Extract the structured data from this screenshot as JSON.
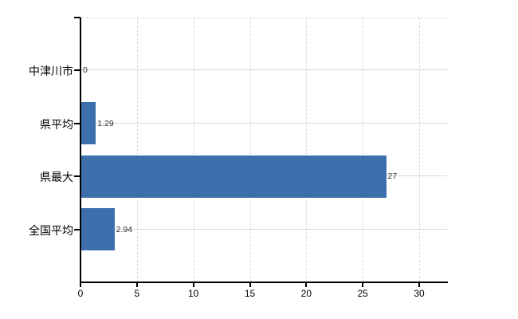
{
  "chart_data": {
    "type": "bar",
    "orientation": "horizontal",
    "title": "",
    "xlabel": "",
    "ylabel": "",
    "categories": [
      "中津川市",
      "県平均",
      "県最大",
      "全国平均"
    ],
    "values": [
      0,
      1.29,
      27,
      2.94
    ],
    "value_labels": [
      "0",
      "1.29",
      "27",
      "2.94"
    ],
    "x_ticks": [
      0,
      5,
      10,
      15,
      20,
      25,
      30
    ],
    "xlim": [
      0,
      32.5
    ],
    "grid": true,
    "legend": false,
    "bar_color": "#3d6fad",
    "grid_color": "#d9d9d9",
    "axis_color": "#000000",
    "label_color": "#000000",
    "value_label_color": "#303030",
    "background_color": "#ffffff"
  }
}
